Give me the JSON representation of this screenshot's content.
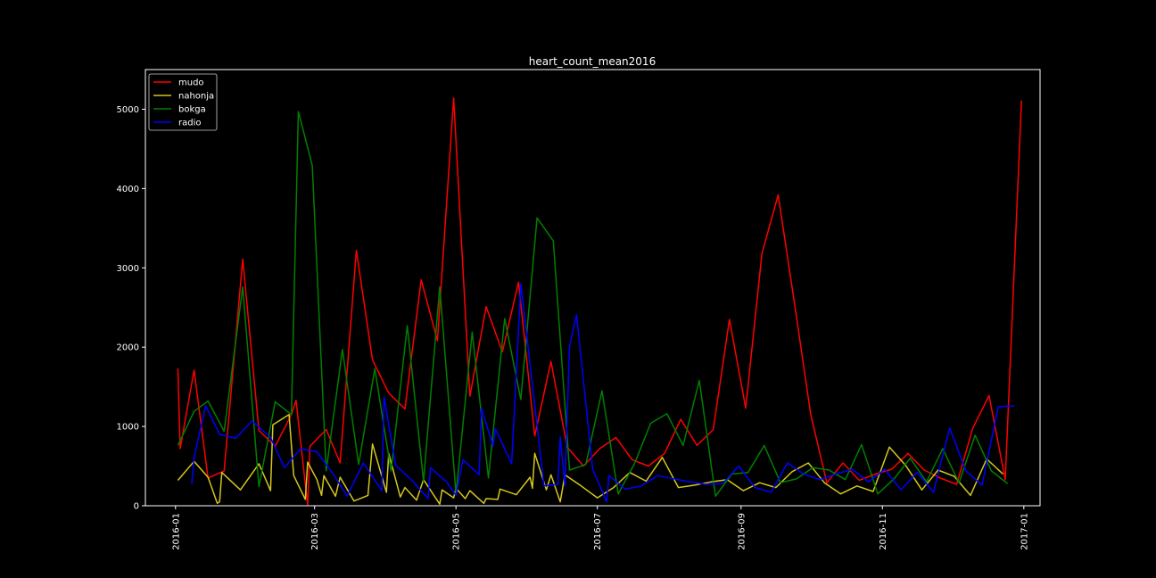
{
  "chart_data": {
    "type": "line",
    "title": "heart_count_mean2016",
    "xlabel": "",
    "ylabel": "",
    "xlim": [
      "2015-12-19",
      "2017-01-08"
    ],
    "ylim": [
      0,
      5500
    ],
    "grid": false,
    "legend_position": "top-left",
    "background": "#000000",
    "x_ticks": [
      "2016-01",
      "2016-03",
      "2016-05",
      "2016-07",
      "2016-09",
      "2016-11",
      "2017-01"
    ],
    "x_tick_dates": [
      "2016-01-01",
      "2016-03-01",
      "2016-05-01",
      "2016-07-01",
      "2016-09-01",
      "2016-11-01",
      "2017-01-01"
    ],
    "y_ticks": [
      0,
      1000,
      2000,
      3000,
      4000,
      5000
    ],
    "series": [
      {
        "name": "mudo",
        "color": "#ff0000",
        "points": [
          [
            "2016-01-02",
            1730
          ],
          [
            "2016-01-03",
            720
          ],
          [
            "2016-01-09",
            1710
          ],
          [
            "2016-01-15",
            350
          ],
          [
            "2016-01-22",
            440
          ],
          [
            "2016-01-30",
            3110
          ],
          [
            "2016-02-06",
            950
          ],
          [
            "2016-02-13",
            750
          ],
          [
            "2016-02-20",
            1150
          ],
          [
            "2016-02-22",
            1330
          ],
          [
            "2016-02-27",
            10
          ],
          [
            "2016-02-28",
            750
          ],
          [
            "2016-03-06",
            960
          ],
          [
            "2016-03-12",
            540
          ],
          [
            "2016-03-19",
            3220
          ],
          [
            "2016-03-26",
            1840
          ],
          [
            "2016-04-02",
            1420
          ],
          [
            "2016-04-09",
            1220
          ],
          [
            "2016-04-16",
            2850
          ],
          [
            "2016-04-23",
            2080
          ],
          [
            "2016-04-30",
            5140
          ],
          [
            "2016-05-07",
            1380
          ],
          [
            "2016-05-14",
            2510
          ],
          [
            "2016-05-21",
            1940
          ],
          [
            "2016-05-28",
            2820
          ],
          [
            "2016-06-04",
            880
          ],
          [
            "2016-06-11",
            1820
          ],
          [
            "2016-06-18",
            740
          ],
          [
            "2016-06-25",
            500
          ],
          [
            "2016-07-02",
            720
          ],
          [
            "2016-07-09",
            860
          ],
          [
            "2016-07-16",
            580
          ],
          [
            "2016-07-23",
            500
          ],
          [
            "2016-07-30",
            660
          ],
          [
            "2016-08-06",
            1090
          ],
          [
            "2016-08-13",
            760
          ],
          [
            "2016-08-20",
            960
          ],
          [
            "2016-08-27",
            2350
          ],
          [
            "2016-09-03",
            1230
          ],
          [
            "2016-09-10",
            3180
          ],
          [
            "2016-09-17",
            3920
          ],
          [
            "2016-09-24",
            2560
          ],
          [
            "2016-10-01",
            1160
          ],
          [
            "2016-10-08",
            290
          ],
          [
            "2016-10-15",
            540
          ],
          [
            "2016-10-22",
            320
          ],
          [
            "2016-10-29",
            400
          ],
          [
            "2016-11-05",
            460
          ],
          [
            "2016-11-12",
            660
          ],
          [
            "2016-11-19",
            450
          ],
          [
            "2016-11-26",
            350
          ],
          [
            "2016-12-03",
            270
          ],
          [
            "2016-12-10",
            980
          ],
          [
            "2016-12-17",
            1390
          ],
          [
            "2016-12-24",
            330
          ],
          [
            "2016-12-31",
            5110
          ]
        ]
      },
      {
        "name": "nahonja",
        "color": "#d4c61e",
        "points": [
          [
            "2016-01-02",
            320
          ],
          [
            "2016-01-09",
            560
          ],
          [
            "2016-01-15",
            360
          ],
          [
            "2016-01-19",
            30
          ],
          [
            "2016-01-20",
            50
          ],
          [
            "2016-01-21",
            420
          ],
          [
            "2016-01-29",
            200
          ],
          [
            "2016-02-06",
            530
          ],
          [
            "2016-02-11",
            190
          ],
          [
            "2016-02-12",
            1020
          ],
          [
            "2016-02-19",
            1150
          ],
          [
            "2016-02-21",
            380
          ],
          [
            "2016-02-26",
            80
          ],
          [
            "2016-02-27",
            550
          ],
          [
            "2016-03-02",
            330
          ],
          [
            "2016-03-04",
            130
          ],
          [
            "2016-03-05",
            380
          ],
          [
            "2016-03-10",
            120
          ],
          [
            "2016-03-12",
            360
          ],
          [
            "2016-03-18",
            60
          ],
          [
            "2016-03-24",
            130
          ],
          [
            "2016-03-26",
            780
          ],
          [
            "2016-04-01",
            170
          ],
          [
            "2016-04-02",
            660
          ],
          [
            "2016-04-07",
            110
          ],
          [
            "2016-04-09",
            230
          ],
          [
            "2016-04-14",
            70
          ],
          [
            "2016-04-17",
            330
          ],
          [
            "2016-04-24",
            20
          ],
          [
            "2016-04-25",
            200
          ],
          [
            "2016-04-30",
            100
          ],
          [
            "2016-05-01",
            220
          ],
          [
            "2016-05-05",
            90
          ],
          [
            "2016-05-07",
            190
          ],
          [
            "2016-05-13",
            30
          ],
          [
            "2016-05-14",
            90
          ],
          [
            "2016-05-19",
            80
          ],
          [
            "2016-05-20",
            210
          ],
          [
            "2016-05-27",
            140
          ],
          [
            "2016-06-02",
            360
          ],
          [
            "2016-06-03",
            220
          ],
          [
            "2016-06-04",
            660
          ],
          [
            "2016-06-09",
            200
          ],
          [
            "2016-06-11",
            390
          ],
          [
            "2016-06-15",
            50
          ],
          [
            "2016-06-17",
            390
          ],
          [
            "2016-06-24",
            250
          ],
          [
            "2016-07-01",
            100
          ],
          [
            "2016-07-08",
            230
          ],
          [
            "2016-07-15",
            420
          ],
          [
            "2016-07-22",
            310
          ],
          [
            "2016-07-29",
            610
          ],
          [
            "2016-08-05",
            230
          ],
          [
            "2016-08-12",
            260
          ],
          [
            "2016-08-19",
            300
          ],
          [
            "2016-08-26",
            330
          ],
          [
            "2016-09-02",
            190
          ],
          [
            "2016-09-09",
            290
          ],
          [
            "2016-09-16",
            230
          ],
          [
            "2016-09-23",
            430
          ],
          [
            "2016-09-30",
            540
          ],
          [
            "2016-10-07",
            290
          ],
          [
            "2016-10-14",
            150
          ],
          [
            "2016-10-21",
            250
          ],
          [
            "2016-10-28",
            180
          ],
          [
            "2016-11-04",
            740
          ],
          [
            "2016-11-11",
            510
          ],
          [
            "2016-11-18",
            200
          ],
          [
            "2016-11-25",
            450
          ],
          [
            "2016-12-02",
            370
          ],
          [
            "2016-12-09",
            130
          ],
          [
            "2016-12-16",
            590
          ],
          [
            "2016-12-23",
            400
          ]
        ]
      },
      {
        "name": "bokga",
        "color": "#008000",
        "points": [
          [
            "2016-01-02",
            760
          ],
          [
            "2016-01-09",
            1190
          ],
          [
            "2016-01-15",
            1320
          ],
          [
            "2016-01-22",
            940
          ],
          [
            "2016-01-30",
            2760
          ],
          [
            "2016-02-06",
            240
          ],
          [
            "2016-02-13",
            1310
          ],
          [
            "2016-02-20",
            1150
          ],
          [
            "2016-02-23",
            4970
          ],
          [
            "2016-02-29",
            4290
          ],
          [
            "2016-03-06",
            440
          ],
          [
            "2016-03-13",
            1970
          ],
          [
            "2016-03-20",
            520
          ],
          [
            "2016-03-27",
            1730
          ],
          [
            "2016-04-03",
            440
          ],
          [
            "2016-04-10",
            2270
          ],
          [
            "2016-04-17",
            310
          ],
          [
            "2016-04-24",
            2760
          ],
          [
            "2016-05-01",
            150
          ],
          [
            "2016-05-08",
            2190
          ],
          [
            "2016-05-15",
            350
          ],
          [
            "2016-05-22",
            2360
          ],
          [
            "2016-05-29",
            1340
          ],
          [
            "2016-06-05",
            3630
          ],
          [
            "2016-06-12",
            3340
          ],
          [
            "2016-06-19",
            450
          ],
          [
            "2016-06-26",
            520
          ],
          [
            "2016-07-03",
            1450
          ],
          [
            "2016-07-10",
            150
          ],
          [
            "2016-07-17",
            530
          ],
          [
            "2016-07-24",
            1040
          ],
          [
            "2016-07-31",
            1160
          ],
          [
            "2016-08-07",
            760
          ],
          [
            "2016-08-14",
            1580
          ],
          [
            "2016-08-21",
            120
          ],
          [
            "2016-08-28",
            400
          ],
          [
            "2016-09-04",
            420
          ],
          [
            "2016-09-11",
            760
          ],
          [
            "2016-09-18",
            290
          ],
          [
            "2016-09-25",
            340
          ],
          [
            "2016-10-02",
            480
          ],
          [
            "2016-10-09",
            450
          ],
          [
            "2016-10-16",
            330
          ],
          [
            "2016-10-23",
            770
          ],
          [
            "2016-10-30",
            150
          ],
          [
            "2016-11-06",
            340
          ],
          [
            "2016-11-13",
            600
          ],
          [
            "2016-11-20",
            300
          ],
          [
            "2016-11-27",
            720
          ],
          [
            "2016-12-04",
            290
          ],
          [
            "2016-12-11",
            890
          ],
          [
            "2016-12-18",
            440
          ],
          [
            "2016-12-25",
            280
          ]
        ]
      },
      {
        "name": "radio",
        "color": "#0000ff",
        "points": [
          [
            "2016-01-08",
            270
          ],
          [
            "2016-01-09",
            610
          ],
          [
            "2016-01-14",
            1260
          ],
          [
            "2016-01-20",
            900
          ],
          [
            "2016-01-27",
            850
          ],
          [
            "2016-02-03",
            1070
          ],
          [
            "2016-02-11",
            860
          ],
          [
            "2016-02-17",
            480
          ],
          [
            "2016-02-24",
            720
          ],
          [
            "2016-03-02",
            680
          ],
          [
            "2016-03-09",
            400
          ],
          [
            "2016-03-15",
            120
          ],
          [
            "2016-03-22",
            540
          ],
          [
            "2016-03-30",
            190
          ],
          [
            "2016-03-31",
            1370
          ],
          [
            "2016-04-05",
            510
          ],
          [
            "2016-04-12",
            320
          ],
          [
            "2016-04-19",
            90
          ],
          [
            "2016-04-20",
            480
          ],
          [
            "2016-04-27",
            300
          ],
          [
            "2016-05-01",
            130
          ],
          [
            "2016-05-04",
            580
          ],
          [
            "2016-05-11",
            390
          ],
          [
            "2016-05-12",
            1230
          ],
          [
            "2016-05-17",
            750
          ],
          [
            "2016-05-18",
            970
          ],
          [
            "2016-05-25",
            530
          ],
          [
            "2016-05-29",
            2800
          ],
          [
            "2016-06-08",
            250
          ],
          [
            "2016-06-14",
            270
          ],
          [
            "2016-06-15",
            870
          ],
          [
            "2016-06-17",
            250
          ],
          [
            "2016-06-19",
            2010
          ],
          [
            "2016-06-22",
            2410
          ],
          [
            "2016-06-29",
            460
          ],
          [
            "2016-07-05",
            50
          ],
          [
            "2016-07-06",
            380
          ],
          [
            "2016-07-13",
            210
          ],
          [
            "2016-07-20",
            250
          ],
          [
            "2016-07-27",
            380
          ],
          [
            "2016-08-03",
            340
          ],
          [
            "2016-08-10",
            300
          ],
          [
            "2016-08-17",
            270
          ],
          [
            "2016-08-24",
            280
          ],
          [
            "2016-08-31",
            500
          ],
          [
            "2016-09-07",
            230
          ],
          [
            "2016-09-14",
            170
          ],
          [
            "2016-09-21",
            540
          ],
          [
            "2016-09-28",
            400
          ],
          [
            "2016-10-05",
            330
          ],
          [
            "2016-10-12",
            400
          ],
          [
            "2016-10-19",
            460
          ],
          [
            "2016-10-26",
            300
          ],
          [
            "2016-11-02",
            460
          ],
          [
            "2016-11-09",
            200
          ],
          [
            "2016-11-16",
            420
          ],
          [
            "2016-11-23",
            170
          ],
          [
            "2016-11-30",
            980
          ],
          [
            "2016-12-07",
            440
          ],
          [
            "2016-12-14",
            260
          ],
          [
            "2016-12-21",
            1250
          ],
          [
            "2016-12-28",
            1260
          ]
        ]
      }
    ]
  }
}
